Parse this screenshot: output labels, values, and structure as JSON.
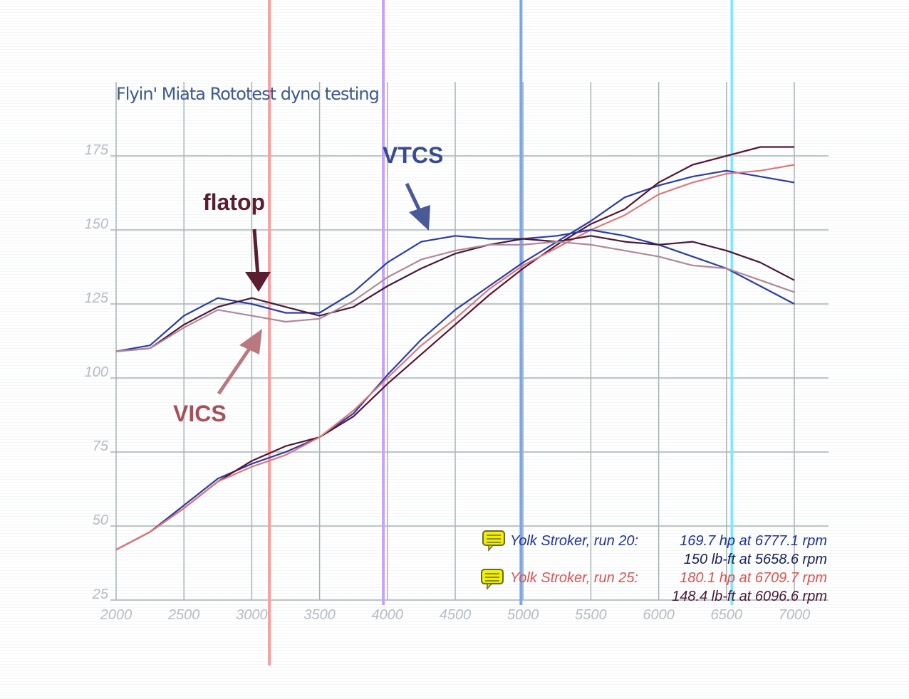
{
  "chart_data": {
    "type": "line",
    "title": "Flyin' Miata Rototest dyno testing",
    "xlabel": "",
    "ylabel": "",
    "xlim": [
      2000,
      7000
    ],
    "ylim": [
      25,
      175
    ],
    "grid": true,
    "xticks": [
      "2000",
      "2500",
      "3000",
      "3500",
      "4000",
      "4500",
      "5000",
      "5500",
      "6000",
      "6500",
      "7000"
    ],
    "yticks": [
      "25",
      "50",
      "75",
      "100",
      "125",
      "150",
      "175"
    ],
    "x": [
      2000,
      2250,
      2500,
      2750,
      3000,
      3250,
      3500,
      3750,
      4000,
      4250,
      4500,
      4750,
      5000,
      5250,
      5500,
      5750,
      6000,
      6250,
      6500,
      6750,
      7000
    ],
    "series": [
      {
        "name": "VTCS hp",
        "color": "#2a3ca8",
        "values": [
          42,
          48,
          57,
          66,
          71,
          75,
          80,
          88,
          101,
          113,
          123,
          131,
          139,
          146,
          153,
          161,
          165,
          168,
          170,
          168,
          166
        ]
      },
      {
        "name": "flatop hp",
        "color": "#5a1430",
        "values": [
          42,
          48,
          56,
          65,
          72,
          77,
          80,
          87,
          98,
          108,
          118,
          128,
          137,
          145,
          152,
          157,
          166,
          172,
          175,
          178,
          178
        ]
      },
      {
        "name": "VICS hp",
        "color": "#e07878",
        "values": [
          42,
          48,
          56,
          65,
          70,
          74,
          80,
          89,
          100,
          111,
          120,
          130,
          138,
          144,
          150,
          155,
          162,
          166,
          169,
          170,
          172
        ]
      },
      {
        "name": "VTCS torque",
        "color": "#2a3ca8",
        "values": [
          109,
          111,
          121,
          127,
          125,
          122,
          122,
          129,
          139,
          146,
          148,
          147,
          147,
          148,
          150,
          148,
          145,
          141,
          137,
          131,
          125
        ]
      },
      {
        "name": "flatop torque",
        "color": "#4a1838",
        "values": [
          109,
          110,
          118,
          124,
          127,
          124,
          121,
          124,
          131,
          137,
          142,
          145,
          147,
          146,
          148,
          146,
          145,
          146,
          143,
          139,
          133
        ]
      },
      {
        "name": "VICS torque",
        "color": "#b08898",
        "values": [
          109,
          110,
          117,
          123,
          121,
          119,
          120,
          126,
          134,
          140,
          143,
          145,
          145,
          146,
          145,
          143,
          141,
          138,
          137,
          133,
          129
        ]
      }
    ],
    "markers": [
      {
        "rpm": 3130,
        "color": "#ff9a9a"
      },
      {
        "rpm": 3970,
        "color": "#c8a0ff"
      },
      {
        "rpm": 4985,
        "color": "#7aa6f0"
      },
      {
        "rpm": 6540,
        "color": "#80e8f8"
      }
    ],
    "annotations": [
      {
        "text": "flatop",
        "color": "#5a1e2e"
      },
      {
        "text": "VTCS",
        "color": "#3a4a90"
      },
      {
        "text": "VICS",
        "color": "#a8505a"
      }
    ],
    "legend": {
      "placement": "bottom-right",
      "entries": [
        {
          "label": "Yolk Stroker, run 20:",
          "hp": "169.7 hp at 6777.1 rpm",
          "torque": "150 lb-ft at 5658.6 rpm",
          "color": "#2030a0"
        },
        {
          "label": "Yolk Stroker, run 25:",
          "hp": "180.1 hp at 6709.7 rpm",
          "torque": "148.4 lb-ft at 6096.6 rpm",
          "color": "#e05050"
        }
      ]
    }
  }
}
